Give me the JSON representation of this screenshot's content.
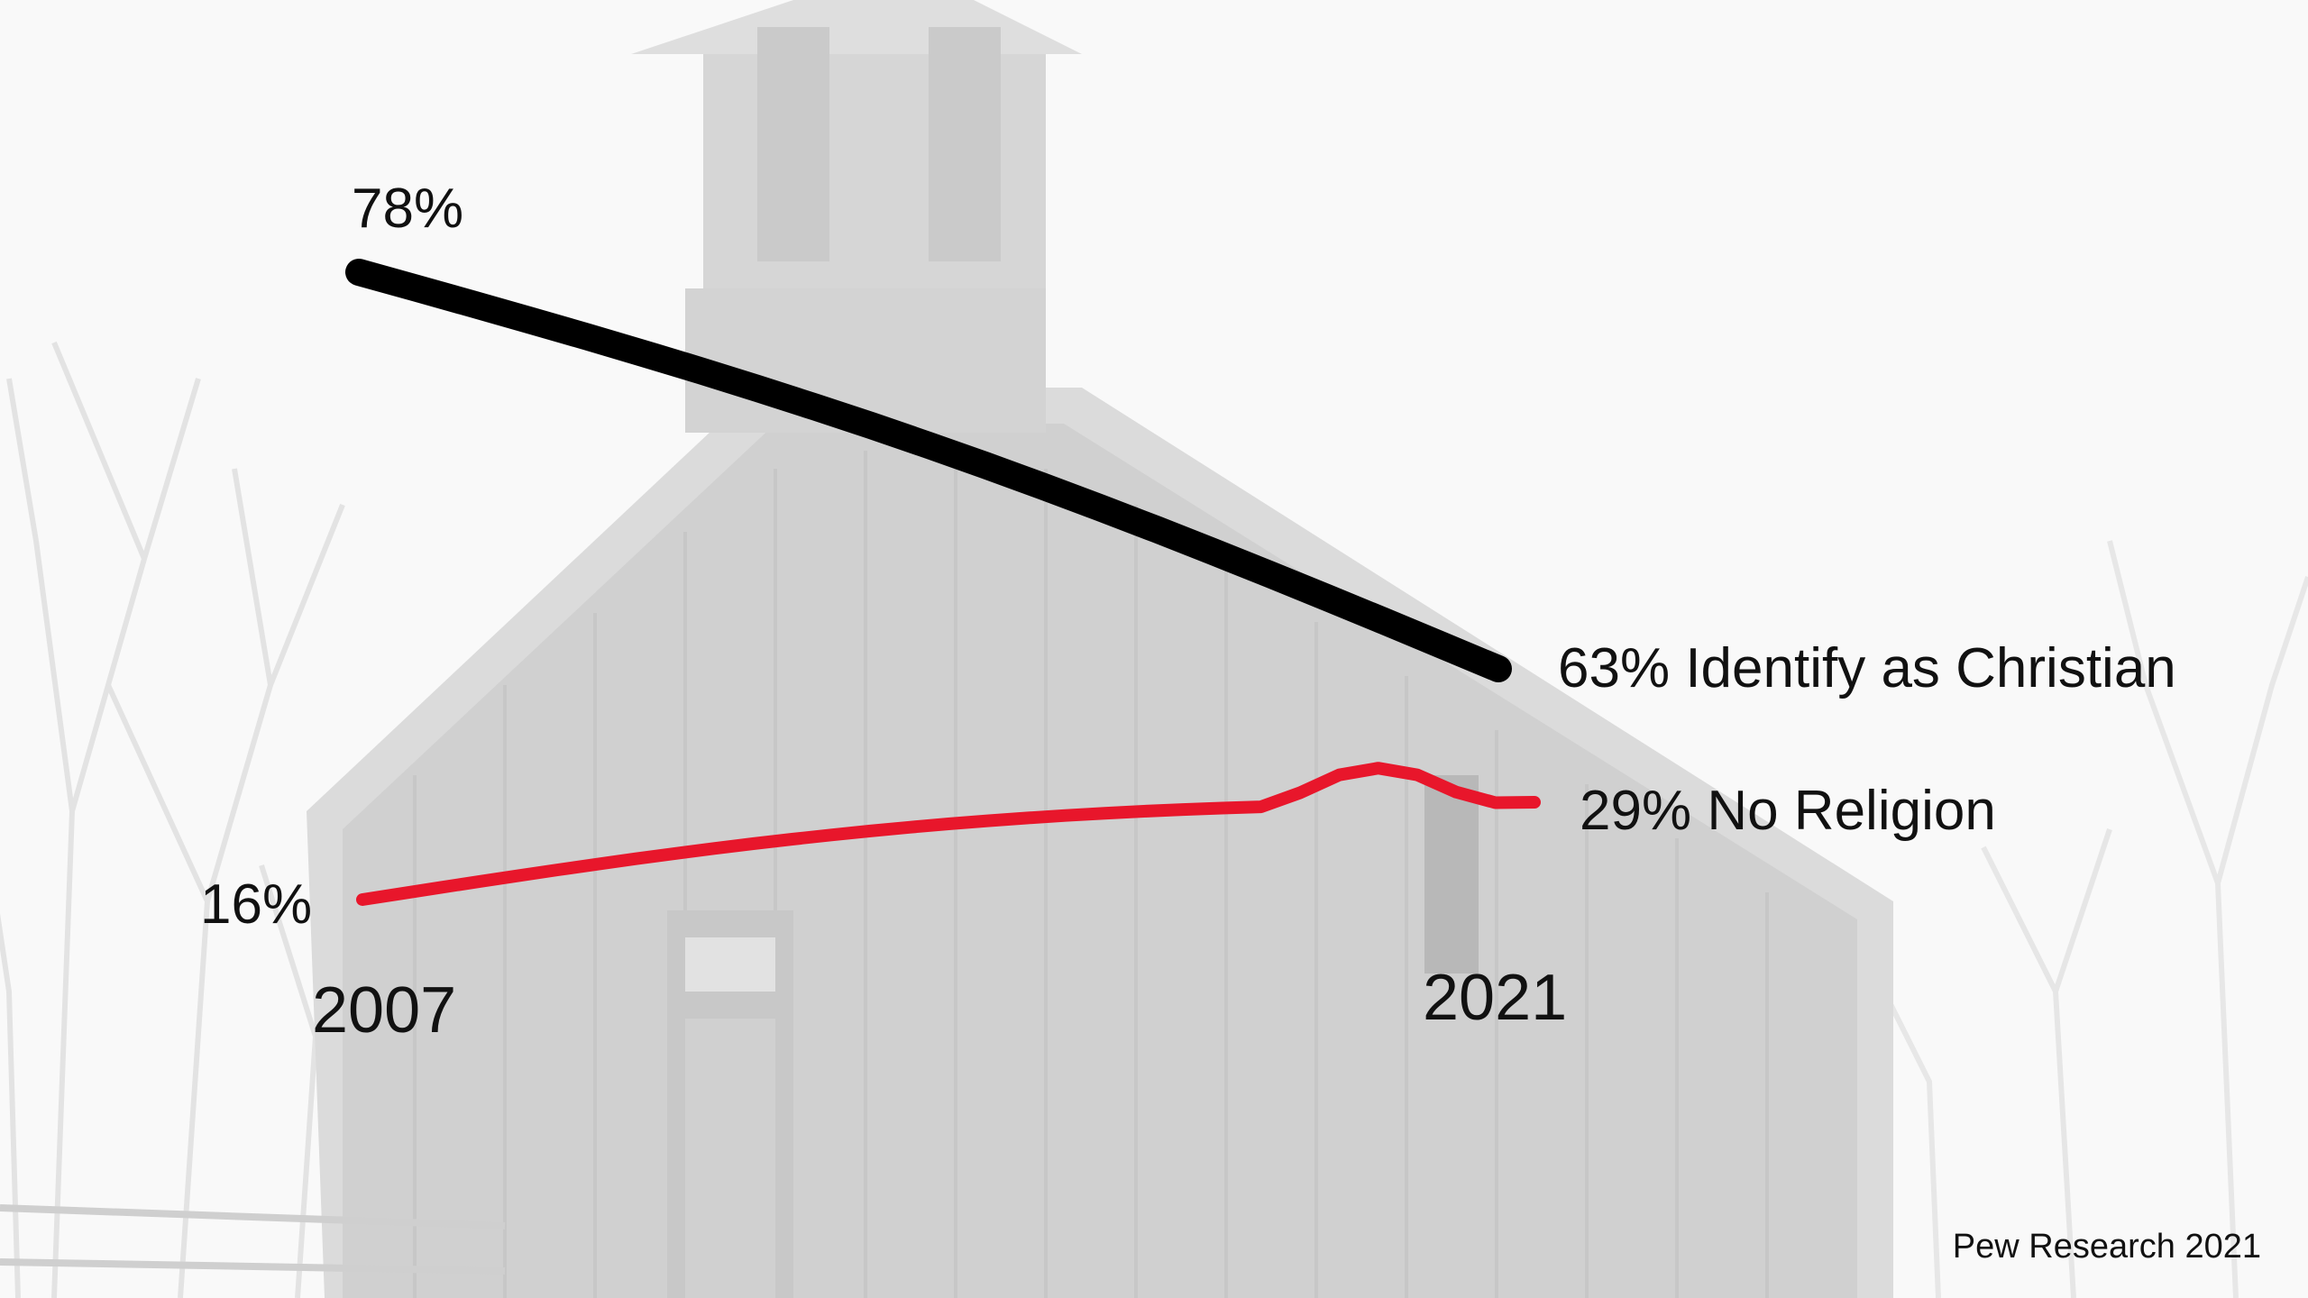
{
  "slide": {
    "source": "Pew Research 2021",
    "colors": {
      "christian": "#000000",
      "no_religion": "#e8162b",
      "background": "#f4f4f4"
    }
  },
  "chart_data": {
    "type": "line",
    "x_start_label": "2007",
    "x_end_label": "2021",
    "series": [
      {
        "key": "christian",
        "start_label": "78%",
        "end_label": "63% Identify as Christian",
        "start_value": 78,
        "end_value": 63
      },
      {
        "key": "no_religion",
        "start_label": "16%",
        "end_label": "29% No Religion",
        "start_value": 16,
        "end_value": 29
      }
    ]
  }
}
